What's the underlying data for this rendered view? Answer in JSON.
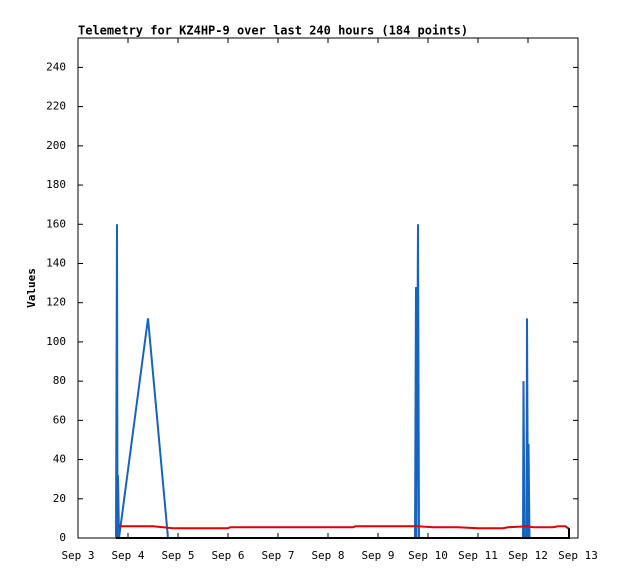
{
  "chart_data": {
    "type": "line",
    "title": "Telemetry for KZ4HP-9 over last 240 hours (184 points)",
    "y_label": "Values",
    "xlim": [
      3,
      13
    ],
    "xticks": [
      {
        "value": 3,
        "label": "Sep 3"
      },
      {
        "value": 4,
        "label": "Sep 4"
      },
      {
        "value": 5,
        "label": "Sep 5"
      },
      {
        "value": 6,
        "label": "Sep 6"
      },
      {
        "value": 7,
        "label": "Sep 7"
      },
      {
        "value": 8,
        "label": "Sep 8"
      },
      {
        "value": 9,
        "label": "Sep 9"
      },
      {
        "value": 10,
        "label": "Sep 10"
      },
      {
        "value": 11,
        "label": "Sep 11"
      },
      {
        "value": 12,
        "label": "Sep 12"
      },
      {
        "value": 13,
        "label": "Sep 13"
      }
    ],
    "ylim": [
      0,
      255
    ],
    "yticks": [
      0,
      20,
      40,
      60,
      80,
      100,
      120,
      140,
      160,
      180,
      200,
      220,
      240
    ],
    "series": [
      {
        "color": "#1565c0",
        "x": [
          3.76,
          3.78,
          3.79,
          3.8,
          3.82,
          4.4,
          4.8,
          9.74,
          9.76,
          9.77,
          9.8,
          9.82,
          11.9,
          11.91,
          11.93,
          11.97,
          11.98,
          12.0,
          12.01,
          12.03,
          12.8
        ],
        "values": [
          0,
          160,
          0,
          32,
          0,
          112,
          0,
          0,
          128,
          0,
          160,
          0,
          0,
          80,
          0,
          0,
          112,
          0,
          48,
          0,
          0
        ]
      },
      {
        "color": "#e00000",
        "x": [
          3.82,
          4.5,
          4.9,
          6.0,
          6.05,
          8.5,
          8.55,
          9.8,
          10.1,
          10.6,
          11.0,
          11.5,
          11.6,
          12.0,
          12.1,
          12.5,
          12.6,
          12.75,
          12.8,
          12.82
        ],
        "values": [
          6,
          6,
          5,
          5,
          5.5,
          5.5,
          6,
          6,
          5.5,
          5.5,
          5,
          5,
          5.5,
          6,
          5.5,
          5.5,
          6,
          6,
          5,
          5
        ]
      },
      {
        "color": "#000000",
        "x": [
          3.76,
          12.82,
          12.82
        ],
        "values": [
          0,
          0,
          5
        ]
      }
    ]
  }
}
